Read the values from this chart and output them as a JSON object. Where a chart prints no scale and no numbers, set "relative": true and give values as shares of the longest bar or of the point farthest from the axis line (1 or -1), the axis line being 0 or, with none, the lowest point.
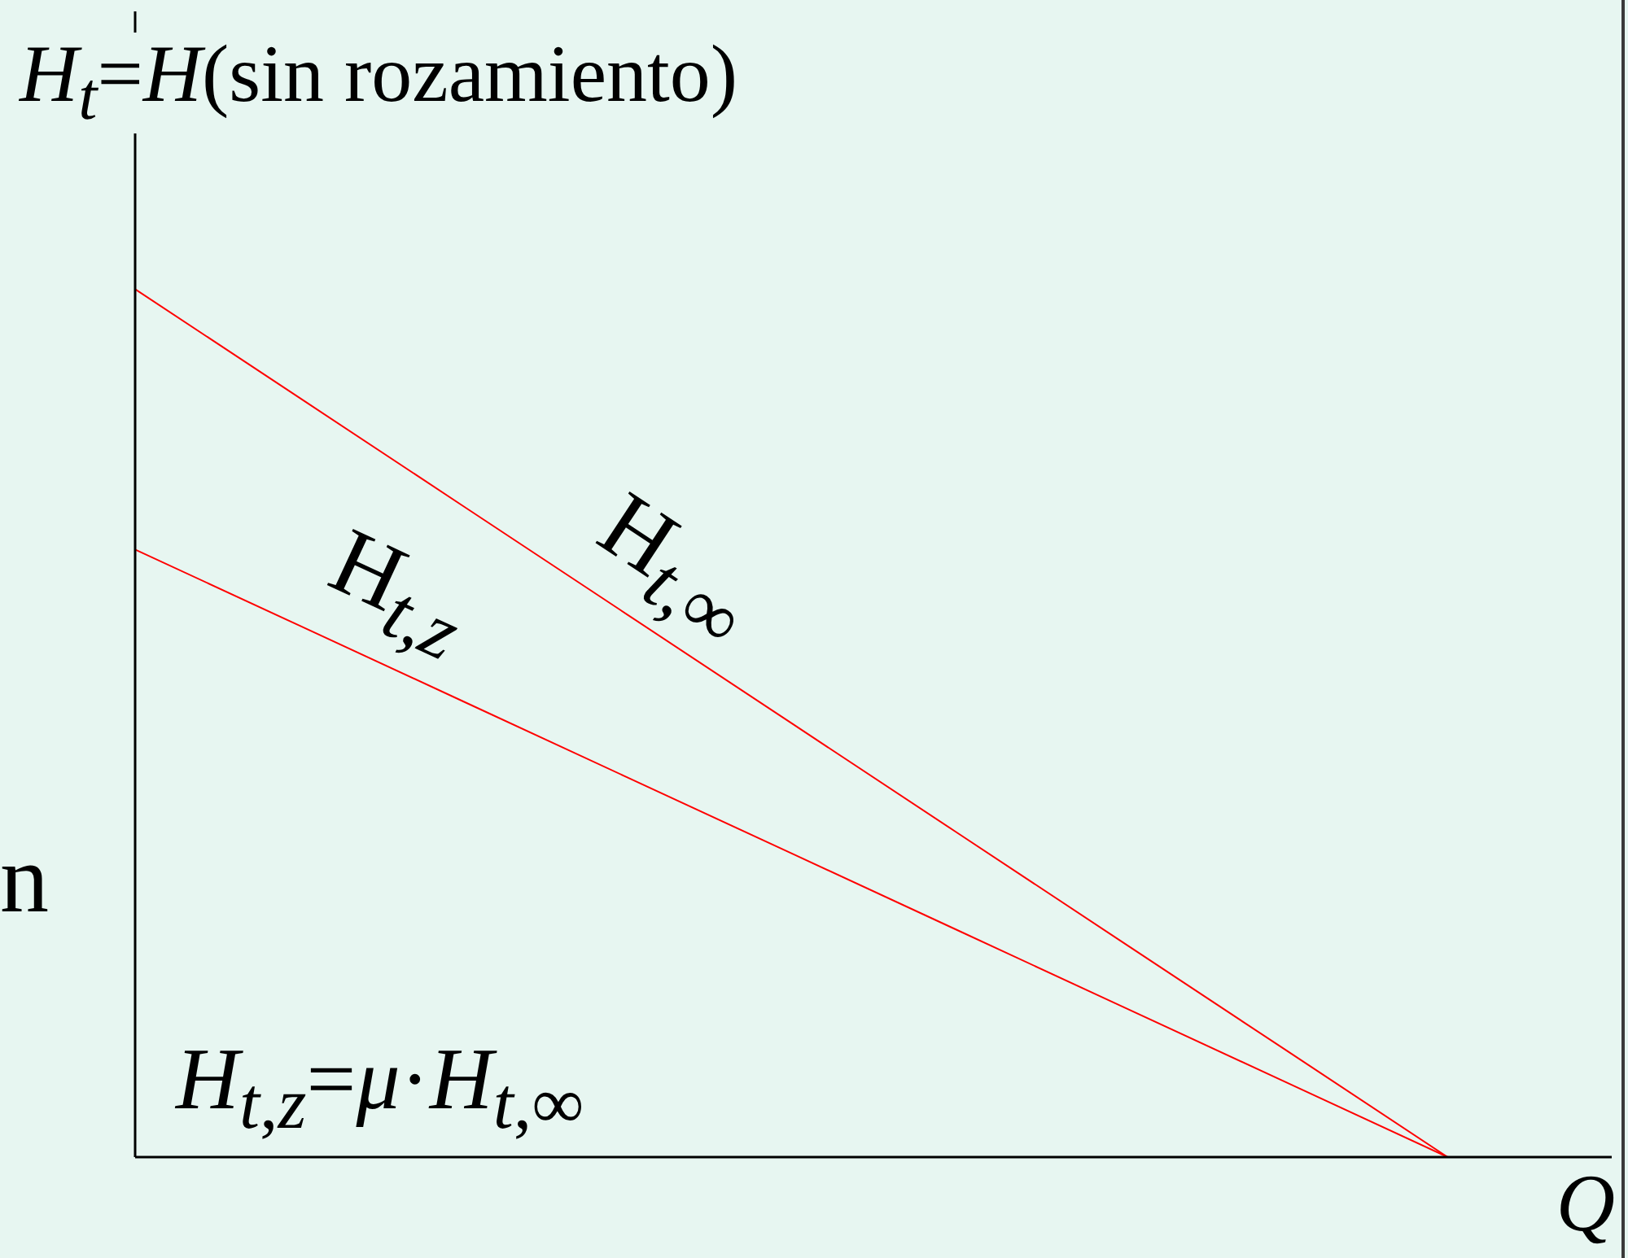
{
  "chart_data": {
    "type": "line",
    "relative": true,
    "xlabel": "Q",
    "ylabel": "H$_{t}$=H(sin rozamiento)",
    "categories": [
      null,
      null,
      null,
      null,
      null,
      null,
      null,
      null,
      null,
      null
    ],
    "series": [
      {
        "name": "H$_{t,∞}$",
        "color": "#ff0000",
        "values": [
          1,
          0.875,
          0.75,
          0.625,
          0.5,
          0.375,
          0.25,
          0.125,
          0,
          null
        ]
      },
      {
        "name": "H$_{t,z}$",
        "color": "#ff0000",
        "values": [
          0.7,
          0.6125,
          0.525,
          0.4375,
          0.35,
          0.2625,
          0.175,
          0.0875,
          0,
          null
        ]
      }
    ],
    "annotations": [
      "H$_{t,z}$=μ·H$_{t,∞}$",
      "n"
    ]
  }
}
